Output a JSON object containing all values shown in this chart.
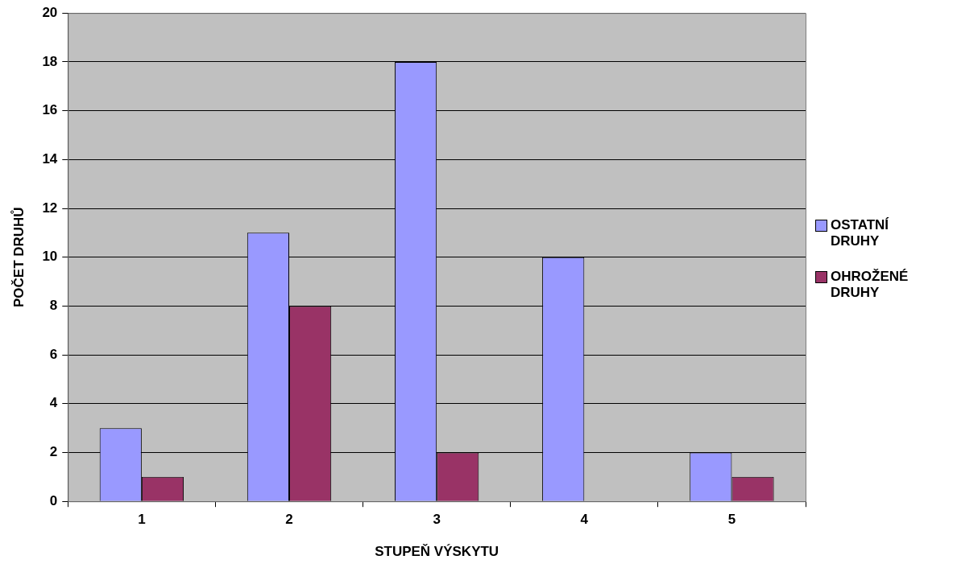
{
  "chart_data": {
    "type": "bar",
    "xlabel": "STUPEŇ VÝSKYTU",
    "ylabel": "POČET DRUHŮ",
    "categories": [
      "1",
      "2",
      "3",
      "4",
      "5"
    ],
    "series": [
      {
        "name": "OSTATNÍ DRUHY",
        "color": "#9999ff",
        "values": [
          3,
          11,
          18,
          10,
          2
        ]
      },
      {
        "name": "OHROŽENÉ DRUHY",
        "color": "#993366",
        "values": [
          1,
          8,
          2,
          null,
          1
        ]
      }
    ],
    "ylim": [
      0,
      20
    ],
    "yticks": [
      0,
      2,
      4,
      6,
      8,
      10,
      12,
      14,
      16,
      18,
      20
    ],
    "grid": "y",
    "legend": "right"
  }
}
